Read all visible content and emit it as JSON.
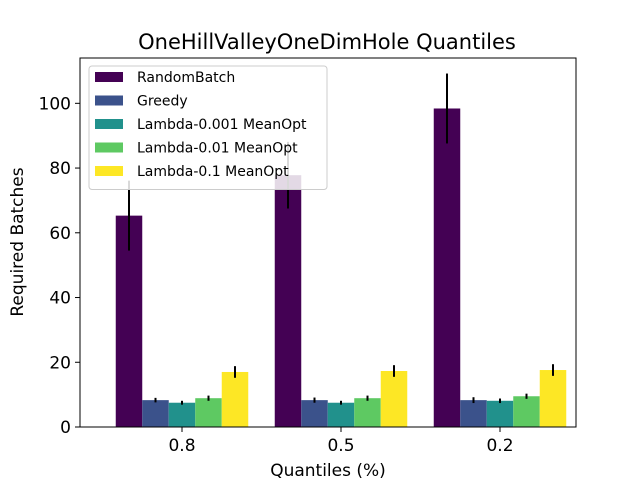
{
  "chart_data": {
    "type": "bar",
    "title": "OneHillValleyOneDimHole Quantiles",
    "xlabel": "Quantiles (%)",
    "ylabel": "Required Batches",
    "categories": [
      "0.8",
      "0.5",
      "0.2"
    ],
    "ylim": [
      0,
      114
    ],
    "yticks": [
      0,
      20,
      40,
      60,
      80,
      100
    ],
    "grid": false,
    "legend_position": "upper-left",
    "series": [
      {
        "name": "RandomBatch",
        "color": "#440154",
        "values": [
          65.3,
          77.8,
          98.4
        ],
        "errors": [
          10.8,
          10.3,
          10.8
        ]
      },
      {
        "name": "Greedy",
        "color": "#3b528b",
        "values": [
          8.3,
          8.3,
          8.3
        ],
        "errors": [
          0.7,
          0.8,
          0.9
        ]
      },
      {
        "name": "Lambda-0.001 MeanOpt",
        "color": "#21918c",
        "values": [
          7.5,
          7.5,
          8.1
        ],
        "errors": [
          0.6,
          0.6,
          0.7
        ]
      },
      {
        "name": "Lambda-0.01 MeanOpt",
        "color": "#5ec962",
        "values": [
          8.9,
          8.9,
          9.5
        ],
        "errors": [
          0.8,
          0.8,
          0.8
        ]
      },
      {
        "name": "Lambda-0.1 MeanOpt",
        "color": "#fde725",
        "values": [
          17.0,
          17.3,
          17.6
        ],
        "errors": [
          1.8,
          1.8,
          1.8
        ]
      }
    ]
  }
}
